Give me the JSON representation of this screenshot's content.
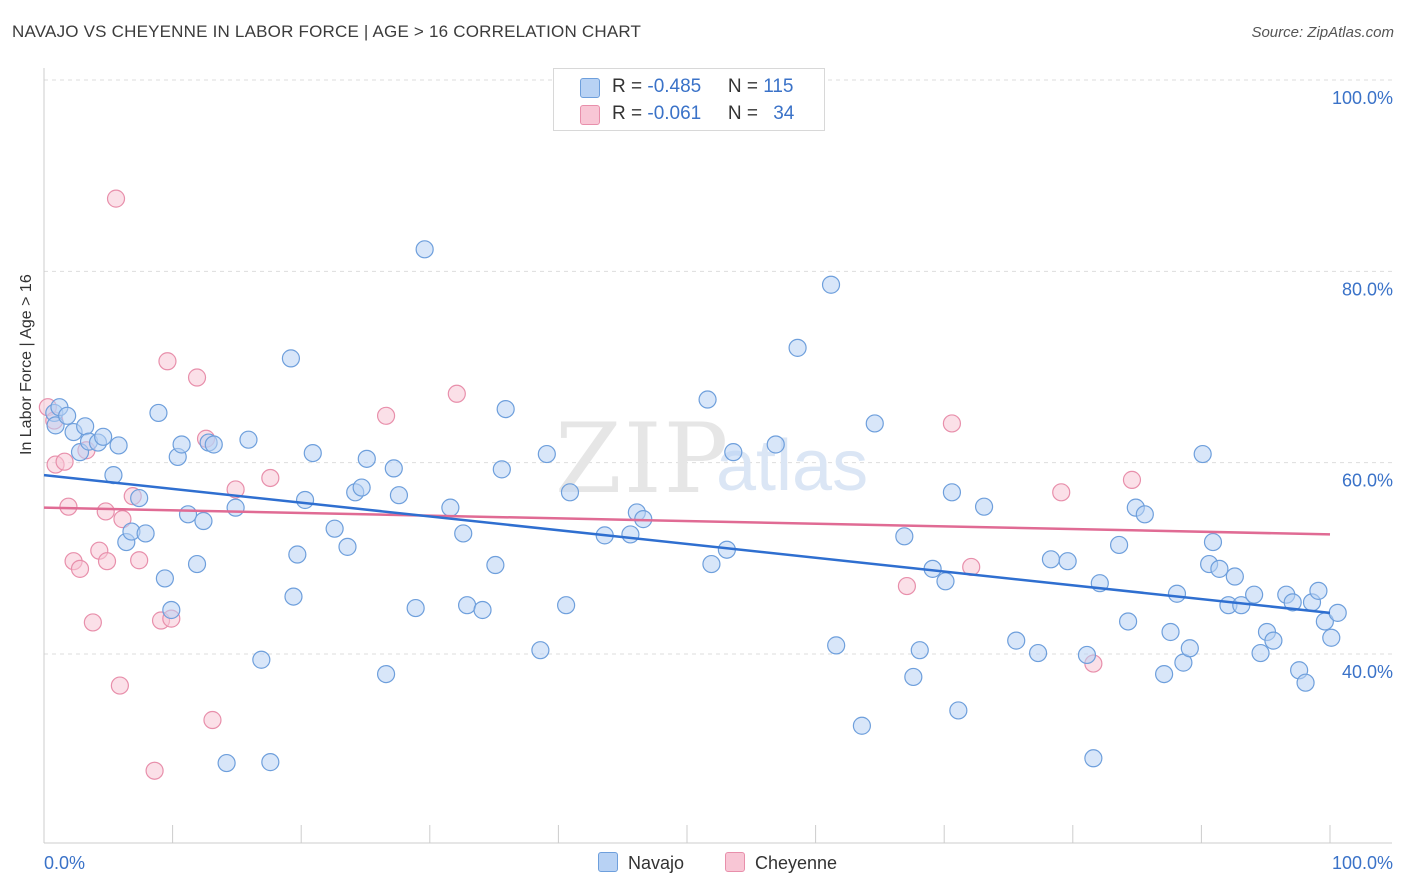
{
  "header": {
    "title": "NAVAJO VS CHEYENNE IN LABOR FORCE | AGE > 16 CORRELATION CHART",
    "source": "Source: ZipAtlas.com"
  },
  "watermark": {
    "zip": "ZIP",
    "atlas": "atlas"
  },
  "colors": {
    "navajo_fill": "#b8d2f4",
    "navajo_stroke": "#6e9fdc",
    "navajo_line": "#2f6fd0",
    "cheyenne_fill": "#f8c6d5",
    "cheyenne_stroke": "#e88fab",
    "cheyenne_line": "#e06b94",
    "tick_label": "#3a72c8"
  },
  "legend": {
    "rows": [
      {
        "r_label": "R = ",
        "r_value": "-0.485",
        "n_label": "N = ",
        "n_value": "115",
        "swatch": "navajo"
      },
      {
        "r_label": "R = ",
        "r_value": "-0.061",
        "n_label": "N = ",
        "n_value": "34",
        "swatch": "cheyenne"
      }
    ]
  },
  "bottom_legend": {
    "navajo": "Navajo",
    "cheyenne": "Cheyenne"
  },
  "chart_data": {
    "type": "scatter",
    "title": "NAVAJO VS CHEYENNE IN LABOR FORCE | AGE > 16 CORRELATION CHART",
    "xlabel": "",
    "ylabel": "In Labor Force | Age > 16",
    "xlim": [
      0,
      100
    ],
    "ylim": [
      20,
      102
    ],
    "x_tick_labels": [
      "0.0%",
      "100.0%"
    ],
    "y_ticks": [
      40,
      60,
      80,
      100
    ],
    "y_tick_labels": [
      "40.0%",
      "60.0%",
      "80.0%",
      "100.0%"
    ],
    "grid": true,
    "legend_position": "top-center",
    "series": [
      {
        "name": "Navajo",
        "trend": {
          "x": [
            0,
            100
          ],
          "y": [
            58.7,
            44.3
          ]
        },
        "points": [
          [
            0.8,
            65.2
          ],
          [
            0.9,
            63.9
          ],
          [
            1.2,
            65.8
          ],
          [
            1.8,
            64.9
          ],
          [
            2.3,
            63.2
          ],
          [
            2.8,
            61.1
          ],
          [
            3.2,
            63.8
          ],
          [
            3.5,
            62.2
          ],
          [
            4.2,
            62.1
          ],
          [
            4.6,
            62.7
          ],
          [
            5.4,
            58.7
          ],
          [
            5.8,
            61.8
          ],
          [
            6.4,
            51.7
          ],
          [
            6.8,
            52.8
          ],
          [
            7.4,
            56.3
          ],
          [
            7.9,
            52.6
          ],
          [
            8.9,
            65.2
          ],
          [
            9.4,
            47.9
          ],
          [
            9.9,
            44.6
          ],
          [
            10.4,
            60.6
          ],
          [
            10.7,
            61.9
          ],
          [
            11.2,
            54.6
          ],
          [
            11.9,
            49.4
          ],
          [
            12.4,
            53.9
          ],
          [
            12.8,
            62.1
          ],
          [
            13.2,
            61.9
          ],
          [
            14.2,
            28.6
          ],
          [
            14.9,
            55.3
          ],
          [
            15.9,
            62.4
          ],
          [
            16.9,
            39.4
          ],
          [
            17.6,
            28.7
          ],
          [
            19.2,
            70.9
          ],
          [
            19.4,
            46.0
          ],
          [
            19.7,
            50.4
          ],
          [
            20.3,
            56.1
          ],
          [
            20.9,
            61.0
          ],
          [
            22.6,
            53.1
          ],
          [
            23.6,
            51.2
          ],
          [
            24.2,
            56.9
          ],
          [
            24.7,
            57.4
          ],
          [
            25.1,
            60.4
          ],
          [
            26.6,
            37.9
          ],
          [
            27.2,
            59.4
          ],
          [
            27.6,
            56.6
          ],
          [
            28.9,
            44.8
          ],
          [
            29.6,
            82.3
          ],
          [
            31.6,
            55.3
          ],
          [
            32.6,
            52.6
          ],
          [
            32.9,
            45.1
          ],
          [
            34.1,
            44.6
          ],
          [
            35.1,
            49.3
          ],
          [
            35.6,
            59.3
          ],
          [
            35.9,
            65.6
          ],
          [
            38.6,
            40.4
          ],
          [
            39.1,
            60.9
          ],
          [
            40.6,
            45.1
          ],
          [
            40.9,
            56.9
          ],
          [
            43.6,
            52.4
          ],
          [
            45.6,
            52.5
          ],
          [
            46.1,
            54.8
          ],
          [
            46.6,
            54.1
          ],
          [
            51.9,
            49.4
          ],
          [
            51.6,
            66.6
          ],
          [
            53.1,
            50.9
          ],
          [
            53.6,
            61.1
          ],
          [
            56.9,
            61.9
          ],
          [
            58.6,
            72.0
          ],
          [
            61.2,
            78.6
          ],
          [
            61.6,
            40.9
          ],
          [
            63.6,
            32.5
          ],
          [
            64.6,
            64.1
          ],
          [
            66.9,
            52.3
          ],
          [
            67.6,
            37.6
          ],
          [
            68.1,
            40.4
          ],
          [
            69.1,
            48.9
          ],
          [
            70.1,
            47.6
          ],
          [
            70.6,
            56.9
          ],
          [
            71.1,
            34.1
          ],
          [
            73.1,
            55.4
          ],
          [
            75.6,
            41.4
          ],
          [
            77.3,
            40.1
          ],
          [
            78.3,
            49.9
          ],
          [
            79.6,
            49.7
          ],
          [
            81.1,
            39.9
          ],
          [
            81.6,
            29.1
          ],
          [
            82.1,
            47.4
          ],
          [
            83.6,
            51.4
          ],
          [
            84.3,
            43.4
          ],
          [
            84.9,
            55.3
          ],
          [
            85.6,
            54.6
          ],
          [
            87.1,
            37.9
          ],
          [
            87.6,
            42.3
          ],
          [
            88.1,
            46.3
          ],
          [
            88.6,
            39.1
          ],
          [
            89.1,
            40.6
          ],
          [
            90.1,
            60.9
          ],
          [
            90.6,
            49.4
          ],
          [
            90.9,
            51.7
          ],
          [
            91.4,
            48.9
          ],
          [
            92.1,
            45.1
          ],
          [
            92.6,
            48.1
          ],
          [
            93.1,
            45.1
          ],
          [
            94.1,
            46.2
          ],
          [
            94.6,
            40.1
          ],
          [
            95.1,
            42.3
          ],
          [
            95.6,
            41.4
          ],
          [
            96.6,
            46.2
          ],
          [
            97.1,
            45.4
          ],
          [
            97.6,
            38.3
          ],
          [
            98.1,
            37.0
          ],
          [
            98.6,
            45.4
          ],
          [
            99.1,
            46.6
          ],
          [
            99.6,
            43.4
          ],
          [
            100.1,
            41.7
          ],
          [
            100.6,
            44.3
          ]
        ]
      },
      {
        "name": "Cheyenne",
        "trend": {
          "x": [
            0,
            100
          ],
          "y": [
            55.3,
            52.5
          ]
        },
        "points": [
          [
            0.3,
            65.8
          ],
          [
            0.8,
            64.4
          ],
          [
            0.9,
            59.8
          ],
          [
            1.6,
            60.1
          ],
          [
            1.9,
            55.4
          ],
          [
            2.3,
            49.7
          ],
          [
            2.8,
            48.9
          ],
          [
            3.3,
            61.3
          ],
          [
            3.8,
            43.3
          ],
          [
            4.3,
            50.8
          ],
          [
            4.8,
            54.9
          ],
          [
            4.9,
            49.7
          ],
          [
            5.6,
            87.6
          ],
          [
            5.9,
            36.7
          ],
          [
            6.1,
            54.1
          ],
          [
            6.9,
            56.5
          ],
          [
            7.4,
            49.8
          ],
          [
            8.6,
            27.8
          ],
          [
            9.1,
            43.5
          ],
          [
            9.6,
            70.6
          ],
          [
            9.9,
            43.7
          ],
          [
            11.9,
            68.9
          ],
          [
            12.6,
            62.5
          ],
          [
            13.1,
            33.1
          ],
          [
            14.9,
            57.2
          ],
          [
            17.6,
            58.4
          ],
          [
            26.6,
            64.9
          ],
          [
            32.1,
            67.2
          ],
          [
            67.1,
            47.1
          ],
          [
            70.6,
            64.1
          ],
          [
            72.1,
            49.1
          ],
          [
            79.1,
            56.9
          ],
          [
            81.6,
            39.0
          ],
          [
            84.6,
            58.2
          ]
        ]
      }
    ]
  }
}
